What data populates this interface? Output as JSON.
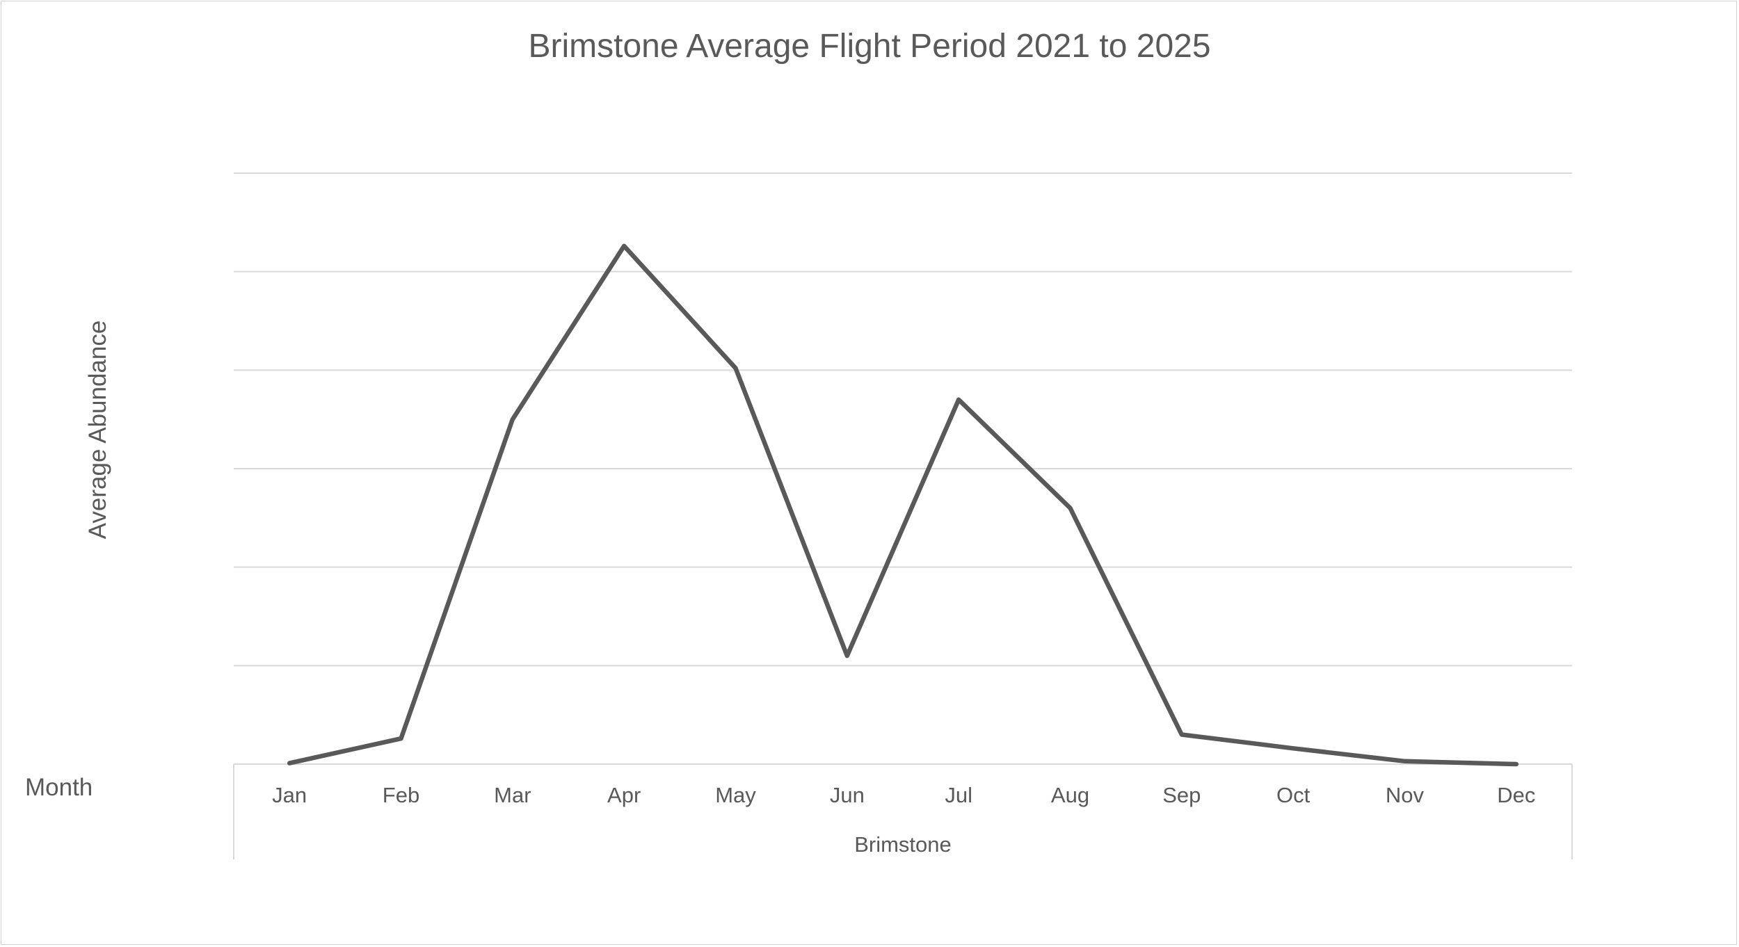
{
  "chart_data": {
    "type": "line",
    "title": "Brimstone Average Flight Period 2021 to 2025",
    "ylabel": "Average Abundance",
    "xlabel": "Brimstone",
    "xfield_label": "Month",
    "categories": [
      "Jan",
      "Feb",
      "Mar",
      "Apr",
      "May",
      "Jun",
      "Jul",
      "Aug",
      "Sep",
      "Oct",
      "Nov",
      "Dec"
    ],
    "series": [
      {
        "values": [
          0.05,
          1.3,
          17.5,
          26.3,
          20.1,
          5.5,
          18.5,
          13.0,
          1.5,
          0.8,
          0.15,
          0.0
        ]
      }
    ],
    "ylim": [
      0,
      30
    ],
    "y_gridlines": [
      0,
      5,
      10,
      15,
      20,
      25,
      30
    ],
    "grid": true,
    "legend": "none",
    "line_color": "#595959"
  }
}
